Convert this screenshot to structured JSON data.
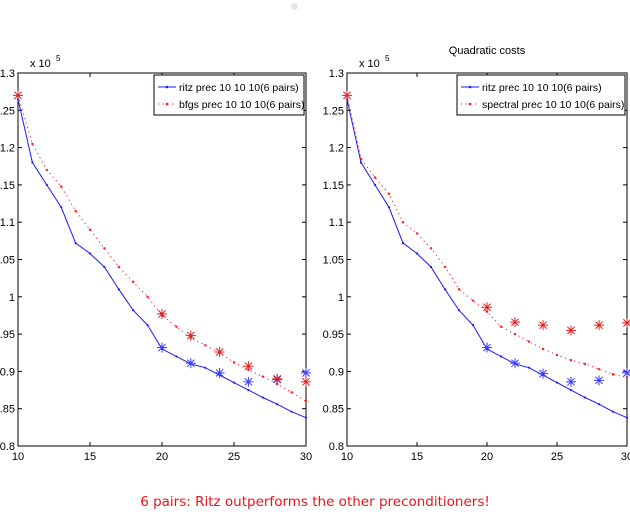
{
  "caption": "6 pairs: Ritz outperforms the other preconditioners!",
  "colors": {
    "ritz": "#1a1aff",
    "other": "#ff1a1a",
    "marker_ritz": "#3a3aff",
    "marker_other": "#e02020"
  },
  "chart_data": [
    {
      "type": "line",
      "title": "",
      "exponent_label": "x 10",
      "exponent_power": "5",
      "xlim": [
        10,
        30
      ],
      "ylim": [
        0.8,
        1.3
      ],
      "x_ticks": [
        10,
        15,
        20,
        25,
        30
      ],
      "y_ticks": [
        0.8,
        0.85,
        0.9,
        0.95,
        1,
        1.05,
        1.1,
        1.15,
        1.2,
        1.25,
        1.3
      ],
      "legend_position": "top-right",
      "series": [
        {
          "name": "ritz  prec 10 10 10(6 pairs)",
          "style": "solid",
          "x": [
            10,
            11,
            12,
            13,
            14,
            15,
            16,
            17,
            18,
            19,
            20,
            21,
            22,
            23,
            24,
            25,
            26,
            27,
            28,
            29,
            30
          ],
          "y": [
            1.265,
            1.18,
            1.15,
            1.12,
            1.072,
            1.058,
            1.04,
            1.01,
            0.982,
            0.962,
            0.93,
            0.92,
            0.91,
            0.905,
            0.895,
            0.885,
            0.875,
            0.865,
            0.856,
            0.846,
            0.838
          ]
        },
        {
          "name": "bfgs prec 10 10 10(6 pairs)",
          "style": "dotted",
          "x": [
            10,
            11,
            12,
            13,
            14,
            15,
            16,
            17,
            18,
            19,
            20,
            21,
            22,
            23,
            24,
            25,
            26,
            27,
            28,
            29,
            30
          ],
          "y": [
            1.27,
            1.205,
            1.17,
            1.148,
            1.115,
            1.09,
            1.065,
            1.04,
            1.02,
            1.0,
            0.975,
            0.96,
            0.945,
            0.935,
            0.925,
            0.912,
            0.902,
            0.893,
            0.883,
            0.872,
            0.86
          ]
        }
      ],
      "markers": [
        {
          "series": 0,
          "x": [
            20,
            22,
            24,
            26,
            28,
            30
          ],
          "y": [
            0.932,
            0.911,
            0.898,
            0.886,
            0.889,
            0.898
          ]
        },
        {
          "series": 1,
          "x": [
            10,
            20,
            22,
            24,
            26,
            28,
            30
          ],
          "y": [
            1.27,
            0.977,
            0.948,
            0.926,
            0.907,
            0.89,
            0.886
          ]
        }
      ]
    },
    {
      "type": "line",
      "title": "Quadratic costs",
      "exponent_label": "x 10",
      "exponent_power": "5",
      "xlim": [
        10,
        30
      ],
      "ylim": [
        0.8,
        1.3
      ],
      "x_ticks": [
        10,
        15,
        20,
        25,
        30
      ],
      "y_ticks": [
        0.8,
        0.85,
        0.9,
        0.95,
        1,
        1.05,
        1.1,
        1.15,
        1.2,
        1.25,
        1.3
      ],
      "legend_position": "top-right",
      "series": [
        {
          "name": "ritz prec 10 10 10(6 pairs)",
          "style": "solid",
          "x": [
            10,
            11,
            12,
            13,
            14,
            15,
            16,
            17,
            18,
            19,
            20,
            21,
            22,
            23,
            24,
            25,
            26,
            27,
            28,
            29,
            30
          ],
          "y": [
            1.265,
            1.18,
            1.15,
            1.12,
            1.072,
            1.058,
            1.04,
            1.01,
            0.982,
            0.962,
            0.93,
            0.92,
            0.91,
            0.905,
            0.895,
            0.885,
            0.875,
            0.865,
            0.856,
            0.846,
            0.838
          ]
        },
        {
          "name": "spectral prec 10 10 10(6 pairs)",
          "style": "dotted",
          "x": [
            10,
            11,
            12,
            13,
            14,
            15,
            16,
            17,
            18,
            19,
            20,
            21,
            22,
            23,
            24,
            25,
            26,
            27,
            28,
            29,
            30
          ],
          "y": [
            1.27,
            1.185,
            1.16,
            1.138,
            1.1,
            1.085,
            1.065,
            1.04,
            1.01,
            0.995,
            0.98,
            0.96,
            0.95,
            0.94,
            0.93,
            0.922,
            0.915,
            0.91,
            0.903,
            0.896,
            0.892
          ]
        }
      ],
      "markers": [
        {
          "series": 0,
          "x": [
            20,
            22,
            24,
            26,
            28,
            30
          ],
          "y": [
            0.932,
            0.911,
            0.897,
            0.886,
            0.888,
            0.898
          ]
        },
        {
          "series": 1,
          "x": [
            10,
            20,
            22,
            24,
            26,
            28,
            30
          ],
          "y": [
            1.27,
            0.986,
            0.966,
            0.962,
            0.955,
            0.962,
            0.965
          ]
        }
      ]
    }
  ]
}
